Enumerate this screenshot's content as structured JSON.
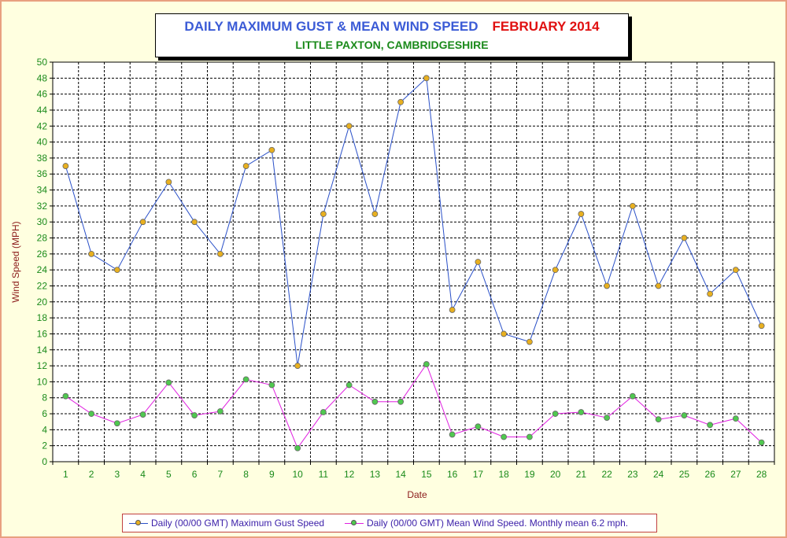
{
  "chart_data": {
    "type": "line",
    "title": "DAILY MAXIMUM GUST & MEAN WIND SPEED",
    "title_month": "FEBRUARY 2014",
    "subtitle": "LITTLE PAXTON, CAMBRIDGESHIRE",
    "xlabel": "Date",
    "ylabel": "Wind Speed (MPH)",
    "ylim": [
      0,
      50
    ],
    "ytick_step": 2,
    "grid": true,
    "legend_position": "bottom",
    "x": [
      1,
      2,
      3,
      4,
      5,
      6,
      7,
      8,
      9,
      10,
      11,
      12,
      13,
      14,
      15,
      16,
      17,
      18,
      19,
      20,
      21,
      22,
      23,
      24,
      25,
      26,
      27,
      28
    ],
    "series": [
      {
        "name": "Daily (00/00 GMT) Maximum Gust Speed",
        "line_color": "#2a50c8",
        "marker_color": "#e8b020",
        "values": [
          37,
          26,
          24,
          30,
          35,
          30,
          26,
          37,
          39,
          12,
          31,
          42,
          31,
          45,
          48,
          19,
          25,
          16,
          15,
          24,
          31,
          22,
          32,
          22,
          28,
          21,
          24,
          17
        ]
      },
      {
        "name": "Daily (00/00 GMT) Mean Wind Speed. Monthly mean 6.2 mph.",
        "line_color": "#e020e0",
        "marker_color": "#50c850",
        "values": [
          8.2,
          6.0,
          4.8,
          5.9,
          9.9,
          5.8,
          6.3,
          10.3,
          9.6,
          1.7,
          6.2,
          9.6,
          7.5,
          7.5,
          12.2,
          3.4,
          4.4,
          3.1,
          3.1,
          6.0,
          6.2,
          5.5,
          8.2,
          5.3,
          5.8,
          4.6,
          5.4,
          2.4
        ]
      }
    ]
  }
}
